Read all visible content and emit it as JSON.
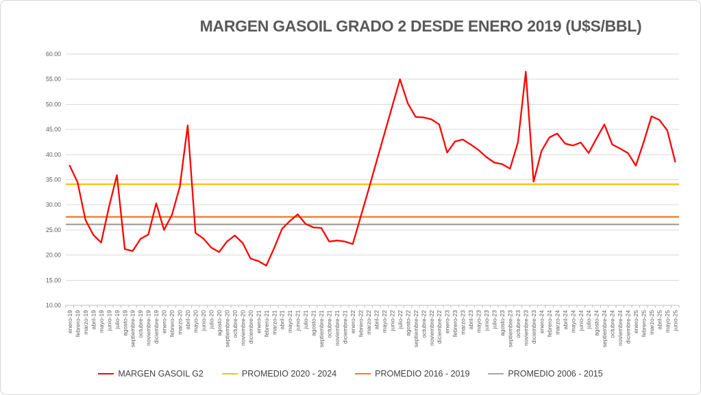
{
  "page": {
    "background": "#FFFFFF",
    "frame_border": "#D6D6D6"
  },
  "axes": {
    "label_color": "#595959",
    "gridline_color": "#D9D9D9",
    "axis_line_color": "#BFBFBF",
    "y_tick_labels": [
      "60.00",
      "55.00",
      "50.00",
      "45.00",
      "40.00",
      "35.00",
      "30.00",
      "25.00",
      "20.00",
      "15.00",
      "10.00"
    ]
  },
  "legend": {
    "text_color": "#404040"
  },
  "chart_data": {
    "type": "line",
    "title": "MARGEN GASOIL GRADO 2 DESDE ENERO 2019 (U$S/BBL)",
    "xlabel": "",
    "ylabel": "",
    "ylim": [
      10,
      60
    ],
    "ytick_step": 5,
    "grid": true,
    "legend_position": "bottom",
    "categories": [
      "enero-19",
      "febrero-19",
      "marzo-19",
      "abril-19",
      "mayo-19",
      "junio-19",
      "julio-19",
      "agosto-19",
      "septiembre-19",
      "octubre-19",
      "noviembre-19",
      "diciembre-19",
      "enero-20",
      "febrero-20",
      "marzo-20",
      "abril-20",
      "mayo-20",
      "junio-20",
      "julio-20",
      "agosto-20",
      "septiembre-20",
      "octubre-20",
      "noviembre-20",
      "diciembre-20",
      "enero-21",
      "febrero-21",
      "marzo-21",
      "abril-21",
      "mayo-21",
      "junio-21",
      "julio-21",
      "agosto-21",
      "septiembre-21",
      "octubre-21",
      "noviembre-21",
      "diciembre-21",
      "enero-22",
      "febrero-22",
      "marzo-22",
      "abril-22",
      "mayo-22",
      "junio-22",
      "julio-22",
      "agosto-22",
      "septiembre-22",
      "octubre-22",
      "noviembre-22",
      "diciembre-22",
      "enero-23",
      "febrero-23",
      "marzo-23",
      "abril-23",
      "mayo-23",
      "junio-23",
      "julio-23",
      "agosto-23",
      "septiembre-23",
      "octubre-23",
      "noviembre-23",
      "diciembre-23",
      "enero-24",
      "febrero-24",
      "marzo-24",
      "abril-24",
      "mayo-24",
      "junio-24",
      "julio-24",
      "agosto-24",
      "septiembre-24",
      "octubre-24",
      "noviembre-24",
      "diciembre-24",
      "enero-25",
      "febrero-25",
      "marzo-25",
      "abril-25",
      "mayo-25",
      "junio-25"
    ],
    "series": [
      {
        "name": "MARGEN GASOIL G2",
        "kind": "line",
        "color": "#FF0000",
        "values": [
          37.8,
          34.5,
          27.0,
          24.0,
          22.5,
          29.6,
          35.9,
          21.2,
          20.8,
          23.2,
          24.1,
          30.3,
          25.0,
          28.0,
          33.6,
          45.8,
          24.4,
          23.3,
          21.5,
          20.6,
          22.7,
          23.9,
          22.4,
          19.3,
          18.8,
          17.9,
          21.4,
          25.2,
          26.8,
          28.1,
          26.2,
          25.5,
          25.4,
          22.7,
          22.9,
          22.7,
          22.2,
          27.6,
          33.0,
          38.5,
          44.0,
          49.5,
          55.0,
          50.2,
          47.5,
          47.4,
          47.0,
          46.0,
          40.4,
          42.6,
          43.0,
          42.0,
          40.9,
          39.5,
          38.4,
          38.1,
          37.2,
          42.4,
          56.5,
          34.6,
          40.7,
          43.4,
          44.2,
          42.2,
          41.8,
          42.4,
          40.3,
          43.2,
          46.0,
          42.0,
          41.2,
          40.3,
          37.8,
          42.5,
          47.6,
          46.9,
          44.8,
          38.6
        ]
      },
      {
        "name": "PROMEDIO 2020 - 2024",
        "kind": "hline",
        "color": "#FFC000",
        "value": 34.1
      },
      {
        "name": "PROMEDIO 2016 - 2019",
        "kind": "hline",
        "color": "#ED7D31",
        "value": 27.6
      },
      {
        "name": "PROMEDIO 2006 - 2015",
        "kind": "hline",
        "color": "#A5A5A5",
        "value": 26.1
      }
    ]
  }
}
